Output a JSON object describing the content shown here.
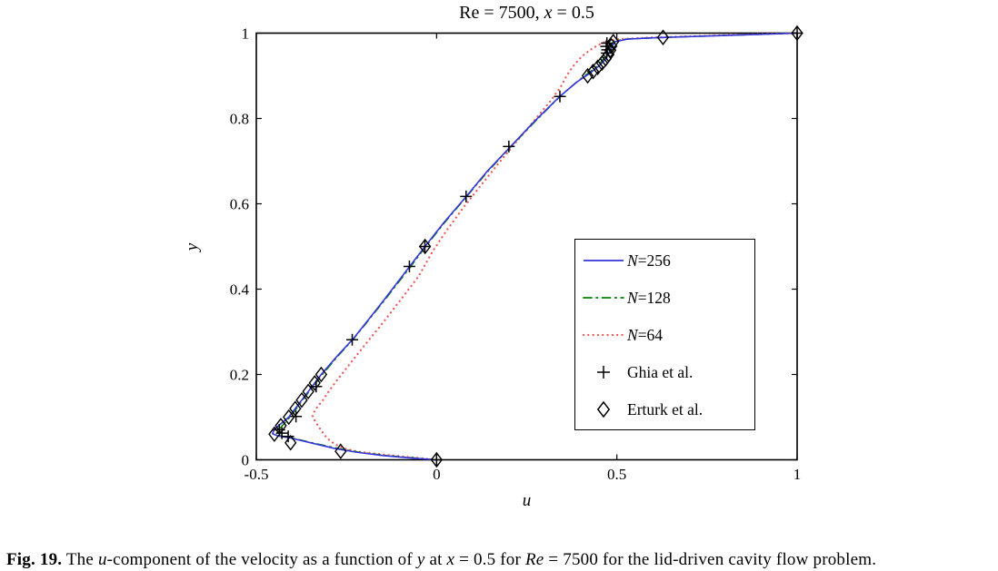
{
  "figure": {
    "title": "Re = 7500, x = 0.5",
    "title_parts": [
      {
        "t": "Re = 7500, ",
        "i": 0
      },
      {
        "t": "x",
        "i": 1
      },
      {
        "t": " = 0.5",
        "i": 0
      }
    ],
    "caption": {
      "label": "Fig. 19.",
      "text": "The u-component of the velocity as a function of y at x = 0.5 for Re = 7500 for the lid-driven cavity flow problem.",
      "parts": [
        {
          "t": " The ",
          "i": 0
        },
        {
          "t": "u",
          "i": 1
        },
        {
          "t": "-component of the velocity as a function of ",
          "i": 0
        },
        {
          "t": "y",
          "i": 1
        },
        {
          "t": " at ",
          "i": 0
        },
        {
          "t": "x",
          "i": 1
        },
        {
          "t": " = 0.5 for ",
          "i": 0
        },
        {
          "t": "Re",
          "i": 1
        },
        {
          "t": " = 7500 for the lid-driven cavity flow problem.",
          "i": 0
        }
      ]
    }
  },
  "legend": {
    "items": [
      {
        "label_italic": "N",
        "label_rest": "=256"
      },
      {
        "label_italic": "N",
        "label_rest": "=128"
      },
      {
        "label_italic": "N",
        "label_rest": "=64"
      },
      {
        "label_italic": "",
        "label_rest": "Ghia et al."
      },
      {
        "label_italic": "",
        "label_rest": "Erturk et al."
      }
    ]
  },
  "chart_data": {
    "type": "line",
    "title": "Re = 7500, x = 0.5",
    "xlabel": "u",
    "ylabel": "y",
    "xlim": [
      -0.5,
      1
    ],
    "ylim": [
      0,
      1
    ],
    "x_ticks": [
      -0.5,
      0,
      0.5,
      1
    ],
    "x_tick_labels": [
      "-0.5",
      "0",
      "0.5",
      "1"
    ],
    "y_ticks": [
      0,
      0.2,
      0.4,
      0.6,
      0.8,
      1
    ],
    "y_tick_labels": [
      "0",
      "0.2",
      "0.4",
      "0.6",
      "0.8",
      "1"
    ],
    "grid": false,
    "legend_position": "middle-right",
    "frame_color": "#000000",
    "series": [
      {
        "name": "N=64",
        "type": "line",
        "linestyle": "dotted",
        "color": "#ee5555",
        "points": [
          [
            0,
            0
          ],
          [
            -0.06,
            0.005
          ],
          [
            -0.12,
            0.01
          ],
          [
            -0.165,
            0.014
          ],
          [
            -0.216,
            0.019
          ],
          [
            -0.253,
            0.026
          ],
          [
            -0.276,
            0.034
          ],
          [
            -0.295,
            0.044
          ],
          [
            -0.308,
            0.055
          ],
          [
            -0.318,
            0.066
          ],
          [
            -0.328,
            0.079
          ],
          [
            -0.338,
            0.092
          ],
          [
            -0.344,
            0.103
          ],
          [
            -0.34,
            0.112
          ],
          [
            -0.33,
            0.125
          ],
          [
            -0.316,
            0.139
          ],
          [
            -0.296,
            0.164
          ],
          [
            -0.273,
            0.19
          ],
          [
            -0.248,
            0.217
          ],
          [
            -0.2,
            0.268
          ],
          [
            -0.15,
            0.32
          ],
          [
            -0.095,
            0.38
          ],
          [
            -0.05,
            0.43
          ],
          [
            -0.01,
            0.49
          ],
          [
            0.03,
            0.54
          ],
          [
            0.075,
            0.592
          ],
          [
            0.12,
            0.64
          ],
          [
            0.17,
            0.693
          ],
          [
            0.22,
            0.744
          ],
          [
            0.27,
            0.794
          ],
          [
            0.315,
            0.84
          ],
          [
            0.345,
            0.875
          ],
          [
            0.362,
            0.902
          ],
          [
            0.382,
            0.926
          ],
          [
            0.402,
            0.945
          ],
          [
            0.425,
            0.96
          ],
          [
            0.45,
            0.973
          ],
          [
            0.468,
            0.98
          ],
          [
            0.505,
            0.986
          ],
          [
            0.6,
            0.99
          ],
          [
            0.72,
            0.993
          ],
          [
            0.86,
            0.997
          ],
          [
            1,
            1
          ]
        ]
      },
      {
        "name": "N=128",
        "type": "line",
        "linestyle": "dashdot",
        "color": "#008000",
        "points": [
          [
            0,
            0
          ],
          [
            -0.06,
            0.004
          ],
          [
            -0.14,
            0.01
          ],
          [
            -0.21,
            0.017
          ],
          [
            -0.27,
            0.026
          ],
          [
            -0.33,
            0.037
          ],
          [
            -0.39,
            0.049
          ],
          [
            -0.428,
            0.055
          ],
          [
            -0.443,
            0.061
          ],
          [
            -0.44,
            0.068
          ],
          [
            -0.428,
            0.08
          ],
          [
            -0.412,
            0.095
          ],
          [
            -0.396,
            0.112
          ],
          [
            -0.378,
            0.133
          ],
          [
            -0.36,
            0.153
          ],
          [
            -0.34,
            0.175
          ],
          [
            -0.32,
            0.197
          ],
          [
            -0.275,
            0.242
          ],
          [
            -0.228,
            0.286
          ],
          [
            -0.148,
            0.37
          ],
          [
            -0.073,
            0.452
          ],
          [
            -0.03,
            0.5
          ],
          [
            0.022,
            0.556
          ],
          [
            0.084,
            0.618
          ],
          [
            0.142,
            0.676
          ],
          [
            0.207,
            0.735
          ],
          [
            0.272,
            0.792
          ],
          [
            0.344,
            0.853
          ],
          [
            0.392,
            0.888
          ],
          [
            0.424,
            0.908
          ],
          [
            0.45,
            0.926
          ],
          [
            0.466,
            0.943
          ],
          [
            0.476,
            0.958
          ],
          [
            0.483,
            0.971
          ],
          [
            0.492,
            0.981
          ],
          [
            0.525,
            0.986
          ],
          [
            0.6,
            0.989
          ],
          [
            0.7,
            0.992
          ],
          [
            0.85,
            0.996
          ],
          [
            1,
            1
          ]
        ]
      },
      {
        "name": "N=256",
        "type": "line",
        "linestyle": "solid",
        "color": "#3535dd",
        "points": [
          [
            0,
            0
          ],
          [
            -0.07,
            0.004
          ],
          [
            -0.15,
            0.01
          ],
          [
            -0.225,
            0.018
          ],
          [
            -0.285,
            0.027
          ],
          [
            -0.345,
            0.039
          ],
          [
            -0.405,
            0.051
          ],
          [
            -0.44,
            0.056
          ],
          [
            -0.455,
            0.061
          ],
          [
            -0.452,
            0.068
          ],
          [
            -0.44,
            0.079
          ],
          [
            -0.424,
            0.09
          ],
          [
            -0.41,
            0.1
          ],
          [
            -0.392,
            0.12
          ],
          [
            -0.374,
            0.14
          ],
          [
            -0.356,
            0.16
          ],
          [
            -0.338,
            0.18
          ],
          [
            -0.32,
            0.2
          ],
          [
            -0.276,
            0.243
          ],
          [
            -0.23,
            0.285
          ],
          [
            -0.15,
            0.37
          ],
          [
            -0.075,
            0.453
          ],
          [
            -0.032,
            0.5
          ],
          [
            0.02,
            0.556
          ],
          [
            0.082,
            0.617
          ],
          [
            0.14,
            0.676
          ],
          [
            0.205,
            0.734
          ],
          [
            0.27,
            0.792
          ],
          [
            0.342,
            0.852
          ],
          [
            0.39,
            0.886
          ],
          [
            0.425,
            0.906
          ],
          [
            0.452,
            0.924
          ],
          [
            0.47,
            0.941
          ],
          [
            0.48,
            0.957
          ],
          [
            0.487,
            0.97
          ],
          [
            0.496,
            0.98
          ],
          [
            0.53,
            0.986
          ],
          [
            0.6,
            0.989
          ],
          [
            0.7,
            0.992
          ],
          [
            0.85,
            0.996
          ],
          [
            1,
            1
          ]
        ]
      },
      {
        "name": "Ghia et al.",
        "type": "scatter",
        "marker": "plus",
        "color": "#000000",
        "points": [
          [
            0,
            0
          ],
          [
            -0.4116,
            0.0547
          ],
          [
            -0.429,
            0.0625
          ],
          [
            -0.4364,
            0.0703
          ],
          [
            -0.39,
            0.1016
          ],
          [
            -0.334,
            0.1719
          ],
          [
            -0.234,
            0.2813
          ],
          [
            -0.0754,
            0.4531
          ],
          [
            -0.0324,
            0.5
          ],
          [
            0.0818,
            0.6172
          ],
          [
            0.2005,
            0.7344
          ],
          [
            0.342,
            0.8516
          ],
          [
            0.4717,
            0.9531
          ],
          [
            0.4732,
            0.9609
          ],
          [
            0.4705,
            0.9688
          ],
          [
            0.4724,
            0.9766
          ],
          [
            1,
            1
          ]
        ]
      },
      {
        "name": "Erturk et al.",
        "type": "scatter",
        "marker": "diamond",
        "color": "#000000",
        "points": [
          [
            0,
            0
          ],
          [
            -0.266,
            0.02
          ],
          [
            -0.405,
            0.04
          ],
          [
            -0.45,
            0.06
          ],
          [
            -0.432,
            0.08
          ],
          [
            -0.41,
            0.1
          ],
          [
            -0.392,
            0.12
          ],
          [
            -0.374,
            0.14
          ],
          [
            -0.356,
            0.16
          ],
          [
            -0.338,
            0.18
          ],
          [
            -0.32,
            0.2
          ],
          [
            -0.032,
            0.5
          ],
          [
            0.419,
            0.9
          ],
          [
            0.434,
            0.91
          ],
          [
            0.447,
            0.92
          ],
          [
            0.459,
            0.93
          ],
          [
            0.469,
            0.94
          ],
          [
            0.477,
            0.95
          ],
          [
            0.482,
            0.96
          ],
          [
            0.485,
            0.97
          ],
          [
            0.49,
            0.98
          ],
          [
            0.628,
            0.99
          ],
          [
            1,
            1
          ]
        ]
      }
    ]
  }
}
